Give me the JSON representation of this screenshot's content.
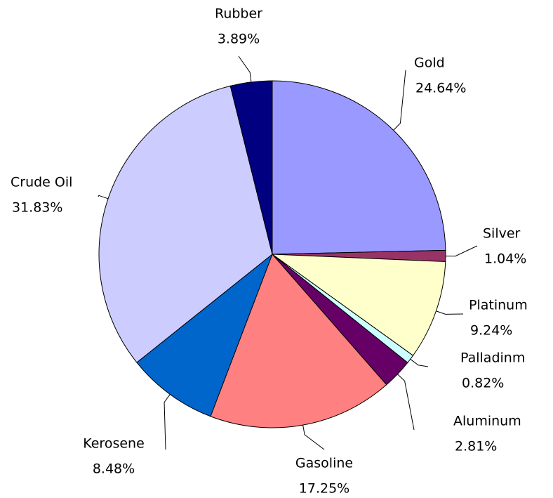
{
  "chart_data": {
    "type": "pie",
    "categories": [
      "Gold",
      "Silver",
      "Platinum",
      "Palladinm",
      "Aluminum",
      "Gasoline",
      "Kerosene",
      "Crude Oil",
      "Rubber"
    ],
    "values": [
      24.64,
      1.04,
      9.24,
      0.82,
      2.81,
      17.25,
      8.48,
      31.83,
      3.89
    ],
    "value_labels": [
      "24.64%",
      "1.04%",
      "9.24%",
      "0.82%",
      "2.81%",
      "17.25%",
      "8.48%",
      "31.83%",
      "3.89%"
    ],
    "colors": [
      "#9999ff",
      "#993366",
      "#ffffcc",
      "#ccffff",
      "#660066",
      "#ff8080",
      "#0066cc",
      "#ccccff",
      "#000080"
    ]
  }
}
